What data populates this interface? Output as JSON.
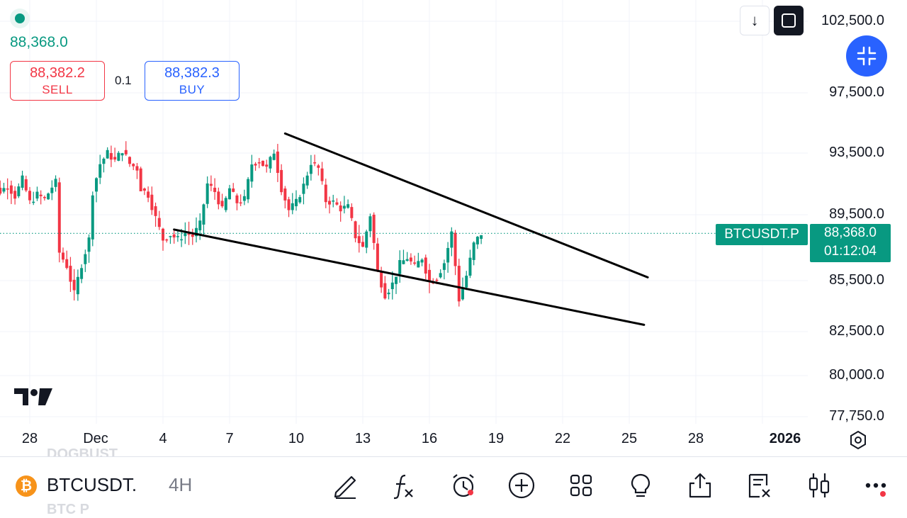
{
  "header": {
    "last_price": "88,368.0",
    "sell": {
      "price": "88,382.2",
      "label": "SELL"
    },
    "buy": {
      "price": "88,382.3",
      "label": "BUY"
    },
    "spread": "0.1",
    "scroll_down_glyph": "↓"
  },
  "price_axis": {
    "labels": [
      "102,500.0",
      "97,500.0",
      "93,500.0",
      "89,500.0",
      "85,500.0",
      "82,500.0",
      "80,000.0",
      "77,750.0"
    ]
  },
  "time_axis": {
    "labels": [
      "28",
      "Dec",
      "4",
      "7",
      "10",
      "13",
      "16",
      "19",
      "22",
      "25",
      "28",
      "2026"
    ]
  },
  "current": {
    "symbol_tag": "BTCUSDT.P",
    "price": "88,368.0",
    "countdown": "01:12:04"
  },
  "bottom_bar": {
    "symbol": "BTCUSDT.",
    "interval": "4H",
    "ghost_top": "DOGBUST",
    "ghost_bottom": "BTC P",
    "icons": [
      "pencil-icon",
      "function-icon",
      "alert-clock-icon",
      "plus-circle-icon",
      "grid-icon",
      "lightbulb-icon",
      "share-icon",
      "trade-list-icon",
      "candlestick-icon",
      "more-icon"
    ]
  },
  "logo_text": "TV",
  "colors": {
    "up": "#089981",
    "down": "#f23645",
    "accent": "#2962ff"
  },
  "chart_data": {
    "type": "candlestick",
    "symbol": "BTCUSDT.P",
    "interval": "4H",
    "x_range": [
      "2025-11-25",
      "2026-01-01"
    ],
    "y_range": [
      77750,
      102500
    ],
    "price_ticks": [
      102500,
      97500,
      93500,
      89500,
      85500,
      82500,
      80000,
      77750
    ],
    "last_price": 88368.0,
    "close_path": [
      [
        0,
        89800
      ],
      [
        3,
        91500
      ],
      [
        5,
        91000
      ],
      [
        7,
        91400
      ],
      [
        9,
        90700
      ],
      [
        11,
        91800
      ],
      [
        13,
        90300
      ],
      [
        15,
        90800
      ],
      [
        17,
        90500
      ],
      [
        19,
        91300
      ],
      [
        20,
        91600
      ],
      [
        21,
        87200
      ],
      [
        23,
        86400
      ],
      [
        25,
        84700
      ],
      [
        27,
        86500
      ],
      [
        29,
        88000
      ],
      [
        30,
        91000
      ],
      [
        32,
        92800
      ],
      [
        34,
        93500
      ],
      [
        36,
        93000
      ],
      [
        38,
        93700
      ],
      [
        40,
        92800
      ],
      [
        42,
        92500
      ],
      [
        43,
        91200
      ],
      [
        45,
        90800
      ],
      [
        47,
        89300
      ],
      [
        49,
        88000
      ],
      [
        51,
        88300
      ],
      [
        53,
        88000
      ],
      [
        55,
        88400
      ],
      [
        57,
        88200
      ],
      [
        59,
        88900
      ],
      [
        61,
        91500
      ],
      [
        63,
        91000
      ],
      [
        65,
        89800
      ],
      [
        67,
        91200
      ],
      [
        69,
        90300
      ],
      [
        71,
        90500
      ],
      [
        73,
        92800
      ],
      [
        75,
        93000
      ],
      [
        77,
        92500
      ],
      [
        79,
        93600
      ],
      [
        81,
        91200
      ],
      [
        83,
        89800
      ],
      [
        85,
        90300
      ],
      [
        87,
        91400
      ],
      [
        89,
        92900
      ],
      [
        91,
        92500
      ],
      [
        93,
        90400
      ],
      [
        95,
        90300
      ],
      [
        97,
        89900
      ],
      [
        99,
        90000
      ],
      [
        101,
        88200
      ],
      [
        103,
        87500
      ],
      [
        105,
        89500
      ],
      [
        107,
        86000
      ],
      [
        109,
        84700
      ],
      [
        111,
        85300
      ],
      [
        113,
        86500
      ],
      [
        115,
        86900
      ],
      [
        117,
        86300
      ],
      [
        119,
        86900
      ],
      [
        121,
        85400
      ],
      [
        123,
        85700
      ],
      [
        125,
        86600
      ],
      [
        127,
        88400
      ],
      [
        129,
        84400
      ],
      [
        131,
        85800
      ],
      [
        133,
        87700
      ],
      [
        135,
        88368
      ]
    ],
    "trendlines": [
      {
        "name": "upper",
        "from": [
          "2025-12-09 12:00",
          94800
        ],
        "to": [
          "2025-12-25 20:00",
          85700
        ]
      },
      {
        "name": "lower",
        "from": [
          "2025-12-04 12:00",
          88600
        ],
        "to": [
          "2025-12-25 16:00",
          82900
        ]
      }
    ]
  }
}
